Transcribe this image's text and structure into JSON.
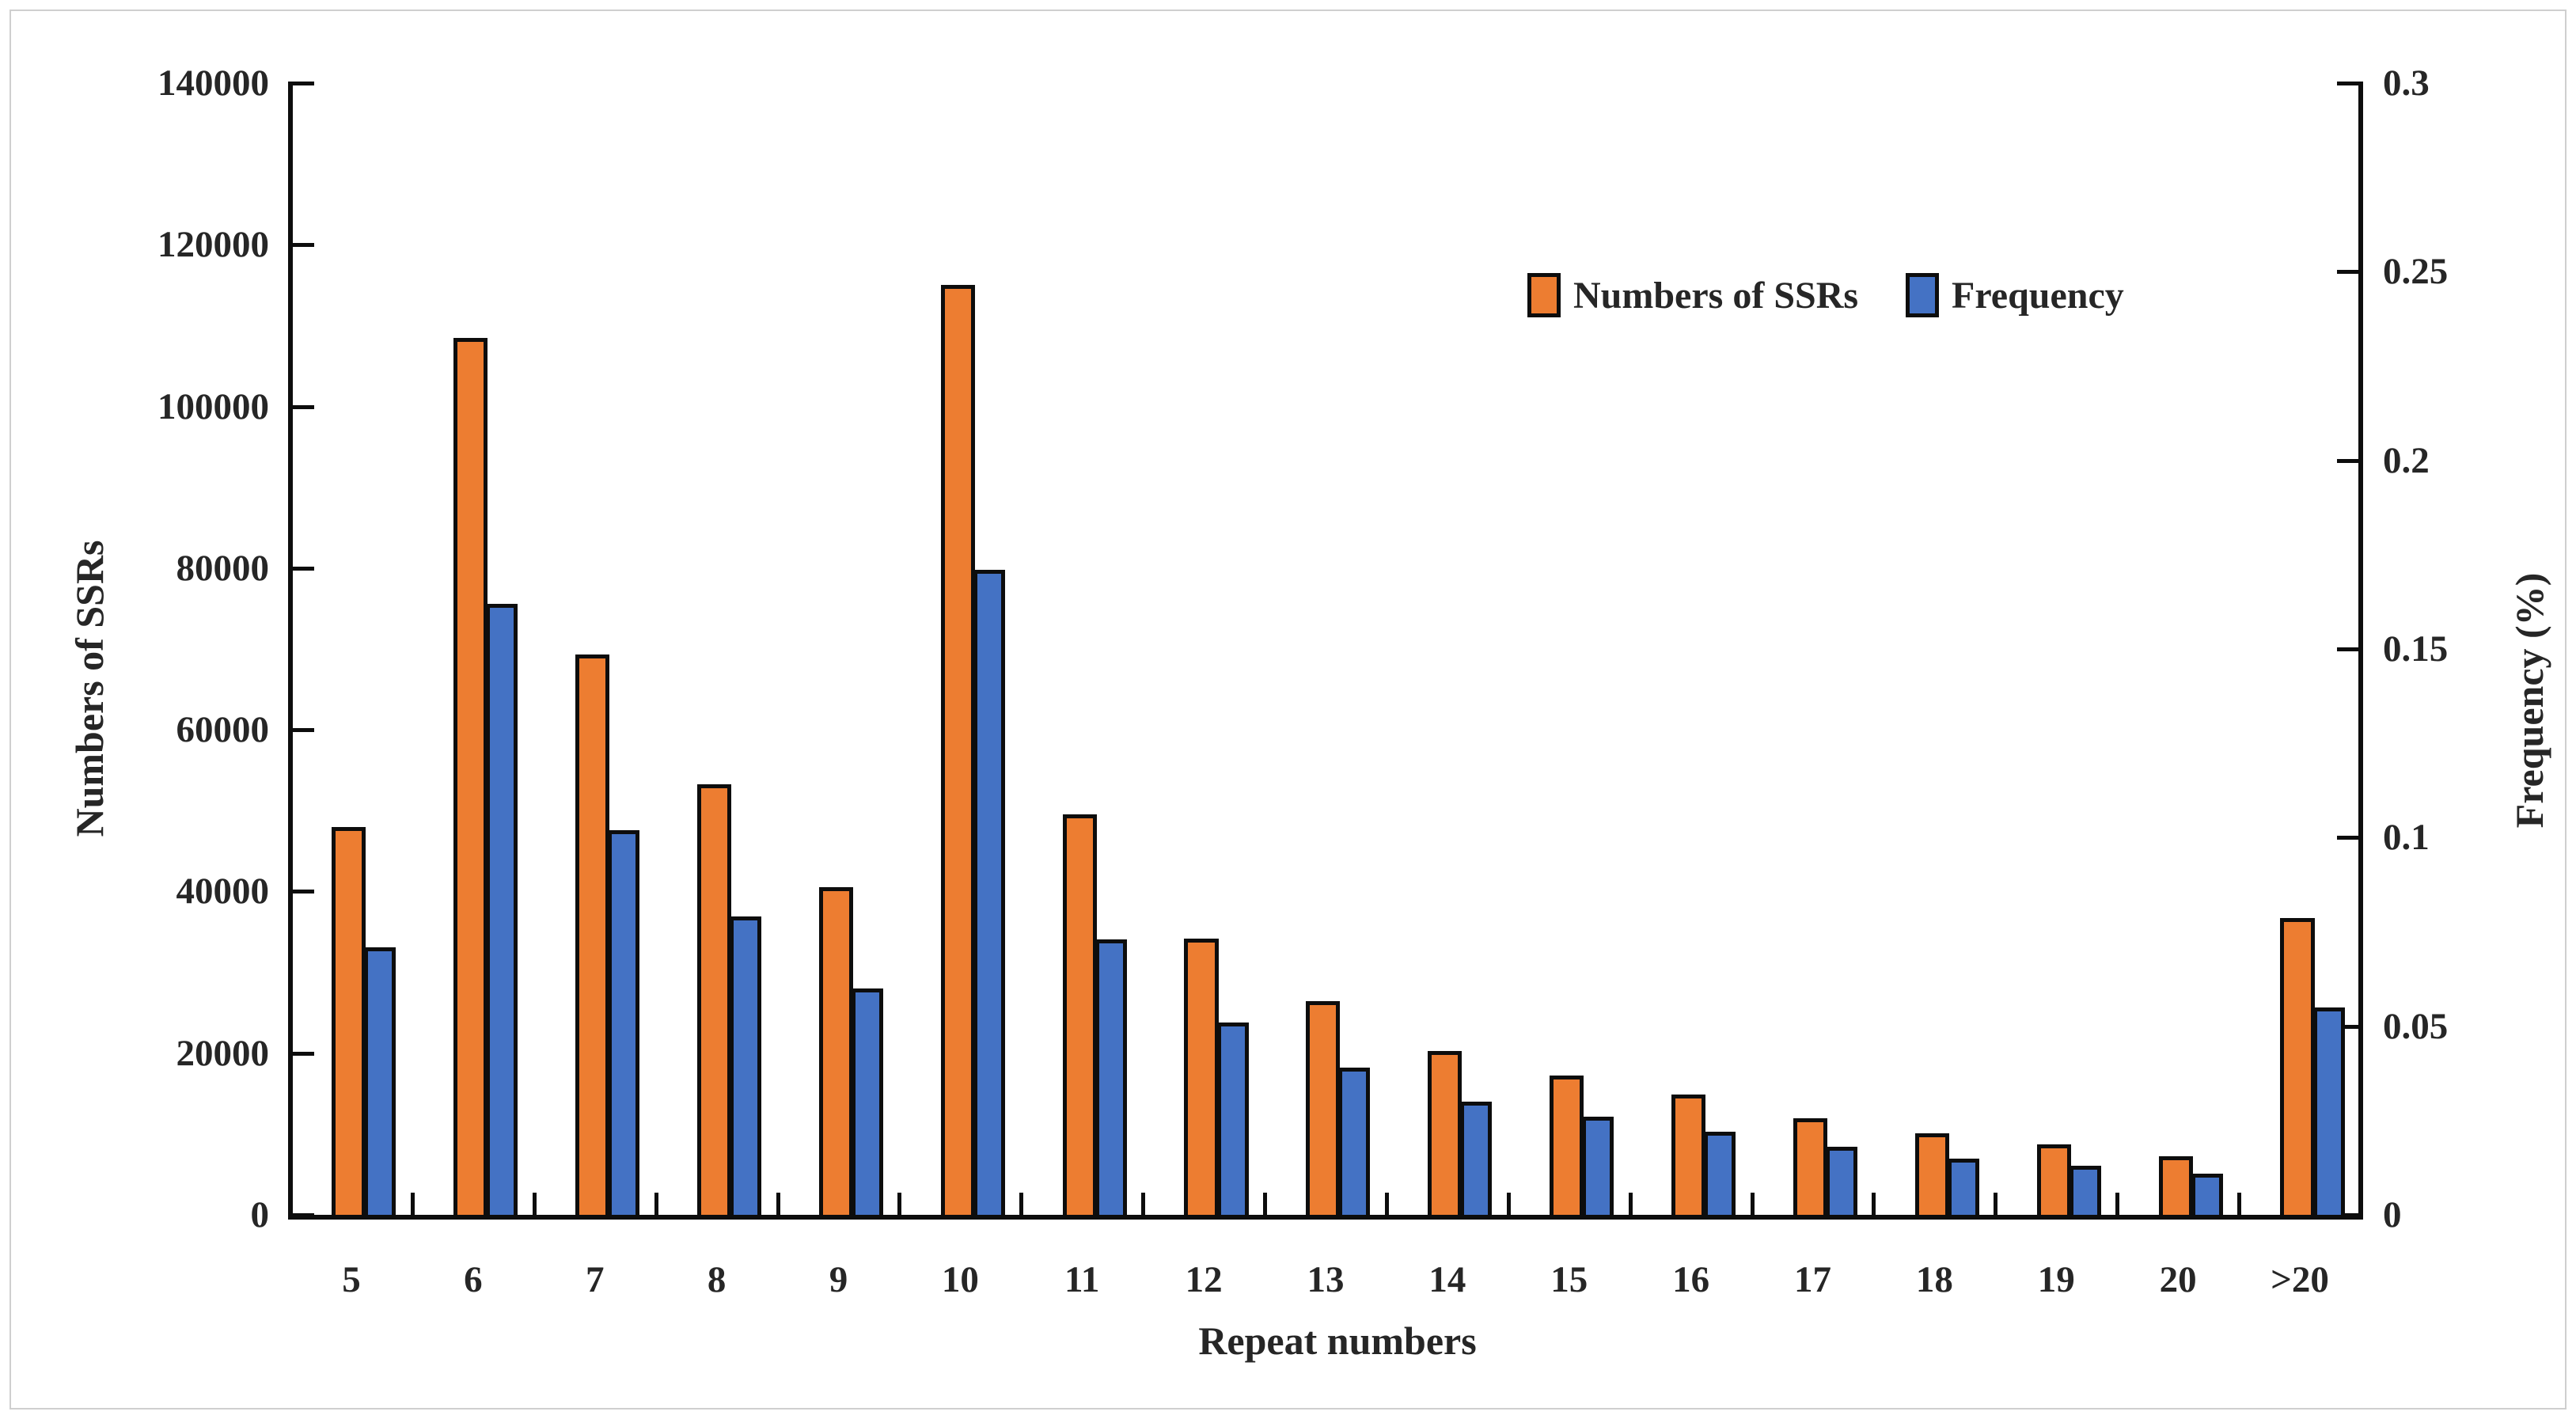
{
  "chart_data": {
    "type": "bar",
    "categories": [
      "5",
      "6",
      "7",
      "8",
      "9",
      "10",
      "11",
      "12",
      "13",
      "14",
      "15",
      "16",
      "17",
      "18",
      "19",
      "20",
      ">20"
    ],
    "series": [
      {
        "name": "Numbers of SSRs",
        "axis": "left",
        "color": "#ED7D31",
        "values": [
          48000,
          108500,
          69300,
          53300,
          40500,
          115000,
          49500,
          34200,
          26400,
          20300,
          17200,
          14900,
          11900,
          10100,
          8700,
          7200,
          36700
        ]
      },
      {
        "name": "Frequency",
        "axis": "right",
        "color": "#4472C4",
        "values": [
          0.071,
          0.162,
          0.102,
          0.079,
          0.06,
          0.171,
          0.073,
          0.051,
          0.039,
          0.03,
          0.026,
          0.022,
          0.018,
          0.015,
          0.013,
          0.011,
          0.055
        ]
      }
    ],
    "xlabel": "Repeat numbers",
    "ylabel_left": "Numbers of SSRs",
    "ylabel_right": "Frequency (%)",
    "ylim_left": [
      0,
      140000
    ],
    "ylim_right": [
      0,
      0.3
    ],
    "yticks_left": [
      "140000",
      "120000",
      "100000",
      "80000",
      "60000",
      "40000",
      "20000",
      "0"
    ],
    "yticks_right": [
      "0.3",
      "0.25",
      "0.2",
      "0.15",
      "0.1",
      "0.05",
      "0"
    ],
    "grid": false,
    "legend_position": "top-right-inside"
  },
  "legend": {
    "items": [
      {
        "label": "Numbers of SSRs",
        "color": "#ED7D31"
      },
      {
        "label": "Frequency",
        "color": "#4472C4"
      }
    ]
  },
  "colors": {
    "bar_ssr": "#ED7D31",
    "bar_frequency": "#4472C4",
    "axis": "#0d0d0d",
    "text": "#262626"
  }
}
